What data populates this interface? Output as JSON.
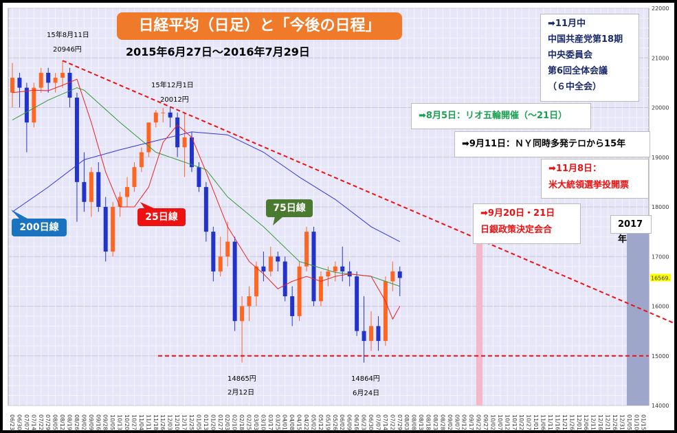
{
  "chart_data": {
    "type": "candlestick",
    "title": "日経平均（日足）と「今後の日程」",
    "subtitle": "2015年6月27日～2016年7月29日",
    "ylim": [
      14000,
      22000
    ],
    "yticks": [
      22000,
      21000,
      20000,
      19000,
      18000,
      17000,
      16000,
      15000,
      14000
    ],
    "last_price_label": "16569.",
    "last_price": 16569,
    "xticks": [
      "06/23",
      "06/30",
      "07/07",
      "07/14",
      "07/22",
      "07/29",
      "08/05",
      "08/12",
      "08/19",
      "08/26",
      "09/02",
      "09/09",
      "09/16",
      "09/28",
      "10/05",
      "10/13",
      "10/20",
      "10/27",
      "11/04",
      "11/11",
      "11/18",
      "11/26",
      "12/03",
      "12/10",
      "12/17",
      "12/25",
      "01/05",
      "01/13",
      "01/20",
      "01/27",
      "02/03",
      "02/10",
      "02/18",
      "02/25",
      "03/03",
      "03/10",
      "03/17",
      "03/25",
      "04/01",
      "04/08",
      "04/15",
      "04/22",
      "05/02",
      "05/12",
      "05/19",
      "05/26",
      "06/02",
      "06/09",
      "06/16",
      "06/23",
      "06/30",
      "07/07",
      "07/14",
      "07/22",
      "07/29",
      "08/03",
      "08/08",
      "08/13",
      "08/18",
      "08/23",
      "08/28",
      "09/02",
      "09/07",
      "09/12",
      "09/17",
      "09/22",
      "09/27",
      "10/02",
      "10/07",
      "10/12",
      "10/17",
      "10/22",
      "10/27",
      "11/01",
      "11/06",
      "11/11",
      "11/16",
      "11/21",
      "11/26",
      "12/01",
      "12/06",
      "12/11",
      "12/16",
      "12/21",
      "12/26",
      "12/31",
      "01/05",
      "01/10",
      "01/15"
    ],
    "ohlc_weekly": [
      [
        20300,
        20900,
        20000,
        20600
      ],
      [
        20600,
        20700,
        20000,
        20400
      ],
      [
        20400,
        20500,
        19100,
        19700
      ],
      [
        19700,
        20500,
        19600,
        20400
      ],
      [
        20400,
        20800,
        20300,
        20700
      ],
      [
        20700,
        20800,
        20300,
        20500
      ],
      [
        20500,
        20700,
        20300,
        20600
      ],
      [
        20600,
        20946,
        20400,
        20700
      ],
      [
        20700,
        20800,
        20000,
        20200
      ],
      [
        20200,
        20300,
        17700,
        18500
      ],
      [
        18500,
        19100,
        17900,
        18100
      ],
      [
        18100,
        18800,
        17800,
        18700
      ],
      [
        18700,
        18900,
        17900,
        18000
      ],
      [
        18000,
        18200,
        16900,
        17100
      ],
      [
        17100,
        18100,
        17000,
        18000
      ],
      [
        18000,
        18300,
        17800,
        18200
      ],
      [
        18200,
        18600,
        18000,
        18400
      ],
      [
        18400,
        18900,
        18300,
        18800
      ],
      [
        18800,
        19200,
        18700,
        19100
      ],
      [
        19100,
        19700,
        19000,
        19700
      ],
      [
        19700,
        19950,
        19600,
        19900
      ],
      [
        19900,
        20000,
        19700,
        19900
      ],
      [
        19900,
        20012,
        19600,
        19800
      ],
      [
        19800,
        19900,
        19000,
        19200
      ],
      [
        19200,
        19900,
        18600,
        19400
      ],
      [
        19400,
        19500,
        18700,
        18800
      ],
      [
        18800,
        18900,
        18300,
        18400
      ],
      [
        18400,
        18500,
        17300,
        17500
      ],
      [
        17500,
        17600,
        16500,
        16700
      ],
      [
        16700,
        17400,
        16600,
        17000
      ],
      [
        17000,
        17700,
        16800,
        17300
      ],
      [
        17300,
        17400,
        15500,
        15700
      ],
      [
        15700,
        16200,
        14865,
        16000
      ],
      [
        16000,
        16400,
        15700,
        16200
      ],
      [
        16200,
        16900,
        16000,
        16800
      ],
      [
        16800,
        17100,
        16500,
        16700
      ],
      [
        16700,
        17200,
        16600,
        17000
      ],
      [
        17000,
        17100,
        16700,
        16900
      ],
      [
        16900,
        17000,
        16100,
        16200
      ],
      [
        16200,
        16400,
        15600,
        15800
      ],
      [
        15800,
        16900,
        15700,
        16800
      ],
      [
        16800,
        17600,
        16700,
        17500
      ],
      [
        17500,
        17600,
        16000,
        16100
      ],
      [
        16100,
        16700,
        16000,
        16600
      ],
      [
        16600,
        16800,
        16400,
        16700
      ],
      [
        16700,
        16900,
        16500,
        16800
      ],
      [
        16800,
        17200,
        16500,
        16700
      ],
      [
        16700,
        16900,
        16400,
        16600
      ],
      [
        16600,
        16700,
        15400,
        15500
      ],
      [
        15500,
        16200,
        14864,
        15300
      ],
      [
        15300,
        15900,
        15100,
        15600
      ],
      [
        15600,
        15800,
        15100,
        15300
      ],
      [
        15300,
        16600,
        15200,
        16500
      ],
      [
        16500,
        16900,
        16300,
        16700
      ],
      [
        16700,
        16800,
        16200,
        16569
      ]
    ],
    "series": [
      {
        "name": "200日線",
        "color": "#3333ee",
        "points": [
          [
            0,
            17900
          ],
          [
            5,
            18400
          ],
          [
            10,
            18950
          ],
          [
            15,
            19150
          ],
          [
            20,
            19330
          ],
          [
            25,
            19510
          ],
          [
            30,
            19450
          ],
          [
            35,
            19100
          ],
          [
            40,
            18600
          ],
          [
            45,
            18150
          ],
          [
            50,
            17600
          ],
          [
            54,
            17300
          ]
        ]
      },
      {
        "name": "75日線",
        "color": "#339933",
        "points": [
          [
            0,
            19750
          ],
          [
            5,
            20150
          ],
          [
            9,
            20400
          ],
          [
            10,
            20350
          ],
          [
            15,
            19700
          ],
          [
            20,
            19100
          ],
          [
            25,
            18850
          ],
          [
            27,
            18750
          ],
          [
            30,
            18200
          ],
          [
            35,
            17600
          ],
          [
            40,
            16900
          ],
          [
            45,
            16680
          ],
          [
            50,
            16600
          ],
          [
            54,
            16400
          ]
        ]
      },
      {
        "name": "25日線",
        "color": "#ee2222",
        "points": [
          [
            0,
            20300
          ],
          [
            3,
            20350
          ],
          [
            5,
            20340
          ],
          [
            7,
            20450
          ],
          [
            9,
            20570
          ],
          [
            11,
            19700
          ],
          [
            13,
            18700
          ],
          [
            15,
            18000
          ],
          [
            17,
            18000
          ],
          [
            19,
            18400
          ],
          [
            21,
            19300
          ],
          [
            23,
            19650
          ],
          [
            25,
            19400
          ],
          [
            27,
            18700
          ],
          [
            30,
            17600
          ],
          [
            33,
            16900
          ],
          [
            35,
            16650
          ],
          [
            37,
            16350
          ],
          [
            39,
            16500
          ],
          [
            41,
            16600
          ],
          [
            43,
            16500
          ],
          [
            45,
            16600
          ],
          [
            47,
            16650
          ],
          [
            50,
            16600
          ],
          [
            52,
            16100
          ],
          [
            53,
            15740
          ],
          [
            54,
            16000
          ]
        ]
      }
    ],
    "trendline": {
      "from": [
        7.0,
        20946
      ],
      "to": [
        92,
        15600
      ]
    },
    "support_line": 15000,
    "annotations": {
      "peak1_date": "15年8月11日",
      "peak1_price": "20946円",
      "peak2_date": "15年12月1日",
      "peak2_price": "20012円",
      "low1_price": "14865円",
      "low1_date": "2月12日",
      "low2_price": "14864円",
      "low2_date": "6月24日"
    },
    "ma_labels": {
      "ma200": "200日線",
      "ma25": "25日線",
      "ma75": "75日線"
    }
  },
  "events": {
    "e1": [
      "➡11月中",
      "中国共産党第18期",
      "中央委員会",
      "第6回全体会議",
      "（６中全会）"
    ],
    "e2": "➡8月5日：リオ五輪開催（～21日）",
    "e3": "➡9月11日：ＮＹ同時多発テロから15年",
    "e4": [
      "➡11月8日：",
      "米大統領選挙投開票"
    ],
    "e5": [
      "➡9月20日・21日",
      "日銀政策決定会合"
    ],
    "e6": "2017年"
  },
  "colors": {
    "up": "#ff6622",
    "down": "#2233cc",
    "title_bg": "#ef7a2a",
    "plot_bg": "#e6e6f8"
  }
}
